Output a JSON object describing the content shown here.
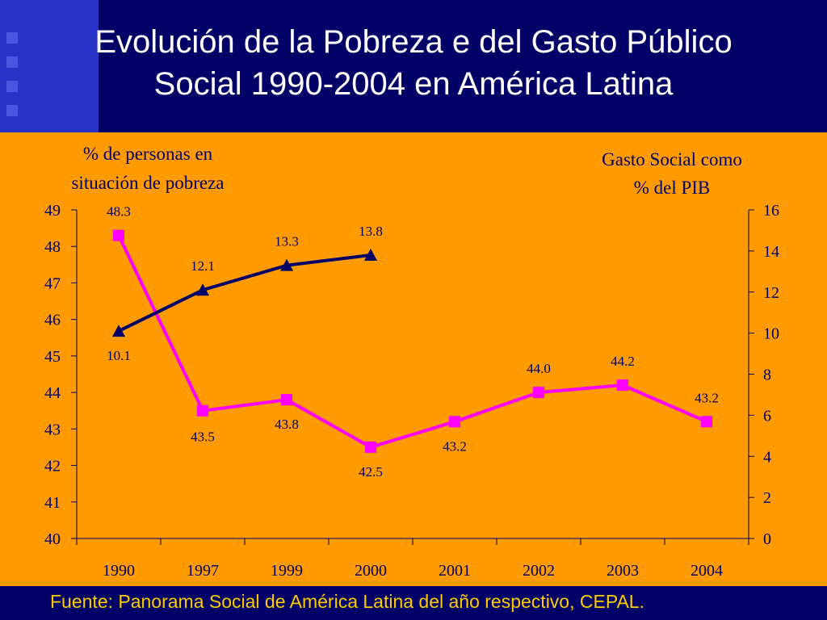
{
  "slide": {
    "title_line1": "Evolución de la Pobreza e del Gasto Público",
    "title_line2": "Social 1990-2004 en América Latina",
    "source": "Fuente: Panorama Social de América Latina del año respectivo, CEPAL."
  },
  "colors": {
    "background_header": "#000066",
    "background_plot": "#ff9a00",
    "poverty_series": "#ff00ff",
    "spending_series": "#000066",
    "source_text": "#ffcc00"
  },
  "chart_data": {
    "type": "line",
    "title": "",
    "categories": [
      "1990",
      "1997",
      "1999",
      "2000",
      "2001",
      "2002",
      "2003",
      "2004"
    ],
    "y_left": {
      "label_line1": "% de personas en",
      "label_line2": "situación de pobreza",
      "min": 40,
      "max": 49,
      "ticks": [
        40,
        41,
        42,
        43,
        44,
        45,
        46,
        47,
        48,
        49
      ]
    },
    "y_right": {
      "label_line1": "Gasto Social como",
      "label_line2": "% del PIB",
      "min": 0,
      "max": 16,
      "ticks": [
        0,
        2,
        4,
        6,
        8,
        10,
        12,
        14,
        16
      ]
    },
    "grid": false,
    "legend": "none",
    "series": [
      {
        "axis": "left",
        "marker": "square",
        "color": "#ff00ff",
        "values": [
          48.3,
          43.5,
          43.8,
          42.5,
          43.2,
          44.0,
          44.2,
          43.2
        ],
        "labels": [
          "48.3",
          "43.5",
          "43.8",
          "42.5",
          "43.2",
          "44.0",
          "44.2",
          "43.2"
        ]
      },
      {
        "axis": "right",
        "marker": "triangle",
        "color": "#000066",
        "values": [
          10.1,
          12.1,
          13.3,
          13.8,
          null,
          null,
          null,
          null
        ],
        "labels": [
          "10.1",
          "12.1",
          "13.3",
          "13.8",
          null,
          null,
          null,
          null
        ]
      }
    ]
  }
}
